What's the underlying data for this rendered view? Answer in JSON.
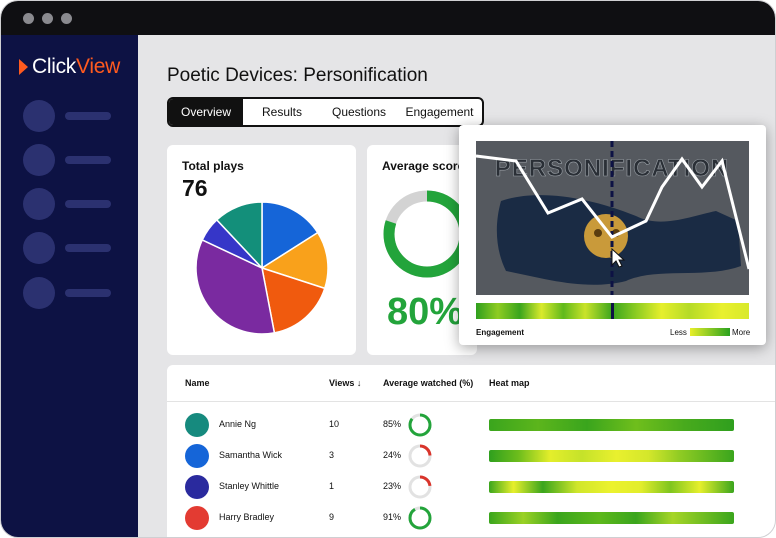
{
  "app": {
    "logo_text_1": "Click",
    "logo_text_2": "View",
    "brand_color": "#ff5a1f",
    "sidebar_color": "#0d1244"
  },
  "page": {
    "title": "Poetic Devices: Personification",
    "tabs": [
      {
        "label": "Overview",
        "active": true
      },
      {
        "label": "Results",
        "active": false
      },
      {
        "label": "Questions",
        "active": false
      },
      {
        "label": "Engagement",
        "active": false
      }
    ]
  },
  "total_plays": {
    "title": "Total plays",
    "value": "76"
  },
  "average_score": {
    "title": "Average score",
    "value": "80%",
    "fraction": 0.8,
    "color": "#23a43b"
  },
  "chart_data": {
    "type": "pie",
    "slices": [
      {
        "value": 16,
        "color": "#1565d8"
      },
      {
        "value": 14,
        "color": "#f9a11b"
      },
      {
        "value": 17,
        "color": "#f05a0e"
      },
      {
        "value": 35,
        "color": "#7a2aa0"
      },
      {
        "value": 6,
        "color": "#3636c8"
      },
      {
        "value": 12,
        "color": "#138f7a"
      }
    ]
  },
  "table": {
    "headers": {
      "name": "Name",
      "views": "Views ↓",
      "avg": "Average watched (%)",
      "heat": "Heat map"
    },
    "rows": [
      {
        "name": "Annie Ng",
        "views": "10",
        "avg": "85%",
        "fraction": 0.85,
        "ring_color": "#23a43b",
        "avatar": "#168a7e"
      },
      {
        "name": "Samantha Wick",
        "views": "3",
        "avg": "24%",
        "fraction": 0.24,
        "ring_color": "#d9342b",
        "avatar": "#1565d8"
      },
      {
        "name": "Stanley Whittle",
        "views": "1",
        "avg": "23%",
        "fraction": 0.23,
        "ring_color": "#d9342b",
        "avatar": "#2a2a9e"
      },
      {
        "name": "Harry Bradley",
        "views": "9",
        "avg": "91%",
        "fraction": 0.91,
        "ring_color": "#23a43b",
        "avatar": "#e33b32"
      }
    ]
  },
  "engagement_popup": {
    "video_text": "PERSONIFICATION",
    "label": "Engagement",
    "legend_less": "Less",
    "legend_more": "More"
  }
}
